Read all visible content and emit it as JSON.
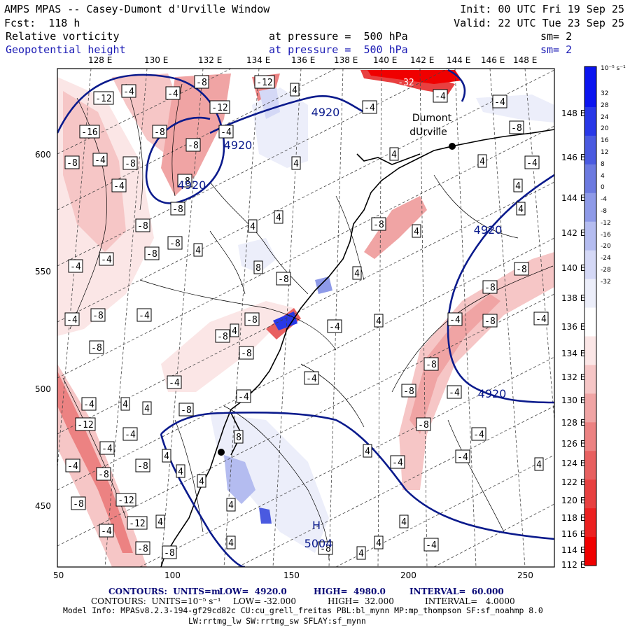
{
  "header": {
    "title": "AMPS MPAS -- Casey-Dumont d'Urville Window",
    "forecast": "Fcst:  118 h",
    "init": "Init: 00 UTC Fri 19 Sep 25",
    "valid": "Valid: 22 UTC Tue 23 Sep 25",
    "field1": "Relative vorticity",
    "field1_level": "at pressure =  500 hPa",
    "field1_sm": "sm= 2",
    "field2": "Geopotential height",
    "field2_level": "at pressure =  500 hPa",
    "field2_sm": "sm= 2"
  },
  "top_lon_labels": [
    "128 E",
    "130 E",
    "132 E",
    "134 E",
    "136 E",
    "138 E",
    "140 E",
    "142 E",
    "144 E",
    "146 E",
    "148 E"
  ],
  "right_lon_labels": [
    "148 E",
    "146 E",
    "144 E",
    "142 E",
    "140 E",
    "138 E",
    "136 E",
    "134 E",
    "132 E",
    "130 E",
    "128 E",
    "126 E",
    "124 E",
    "122 E",
    "120 E",
    "118 E",
    "116 E",
    "114 E",
    "112 E"
  ],
  "x_axis_ticks": [
    "50",
    "100",
    "150",
    "200",
    "250"
  ],
  "y_axis_ticks": [
    "600",
    "550",
    "500",
    "450"
  ],
  "colorbar": {
    "unit": "10⁻⁵ s⁻¹",
    "labels": [
      "32",
      "28",
      "24",
      "20",
      "16",
      "12",
      "8",
      "4",
      "0",
      "-4",
      "-8",
      "-12",
      "-16",
      "-20",
      "-24",
      "-28",
      "-32"
    ],
    "colors": [
      "#0a14f0",
      "#2838e8",
      "#4a5ae0",
      "#6c7ae0",
      "#8e9ae8",
      "#b4bcf0",
      "#d4d8f6",
      "#eceefa",
      "#ffffff",
      "#fbe6e6",
      "#f6c6c6",
      "#f0a4a4",
      "#ec8282",
      "#e86060",
      "#e84040",
      "#ec2020",
      "#f00000"
    ]
  },
  "map_labels": {
    "station1": "Dumont",
    "station2": "dUrville",
    "high_letter": "H",
    "high_value": "5004",
    "height_4920": "4920",
    "pos4": "4",
    "neg8": "-8",
    "neg4": "-4",
    "neg12": "-12",
    "neg16": "-16",
    "neg32": "-32",
    "pos8": "8"
  },
  "footer": {
    "contours1_label": "CONTOURS:  UNITS=m",
    "contours1_low": "LOW=  4920.0",
    "contours1_high": "HIGH=  4980.0",
    "contours1_interval": "INTERVAL=  60.000",
    "contours2_label": "CONTOURS:  UNITS=10⁻⁵ s⁻¹",
    "contours2_low": "LOW= -32.000",
    "contours2_high": "HIGH=  32.000",
    "contours2_interval": "INTERVAL=   4.0000",
    "model_info": "Model Info: MPASv8.2.3-194-gf29cd82c CU:cu_grell_freitas PBL:bl_mynn MP:mp_thompson SF:sf_noahmp 8.0",
    "model_info2": "LW:rrtmg_lw SW:rrtmg_sw SFLAY:sf_mynn"
  },
  "colors": {
    "height_contour": "#0a1a8c",
    "title_blue": "#1a1ab4",
    "coast": "#000000",
    "lat_lon_grid": "#555555"
  }
}
